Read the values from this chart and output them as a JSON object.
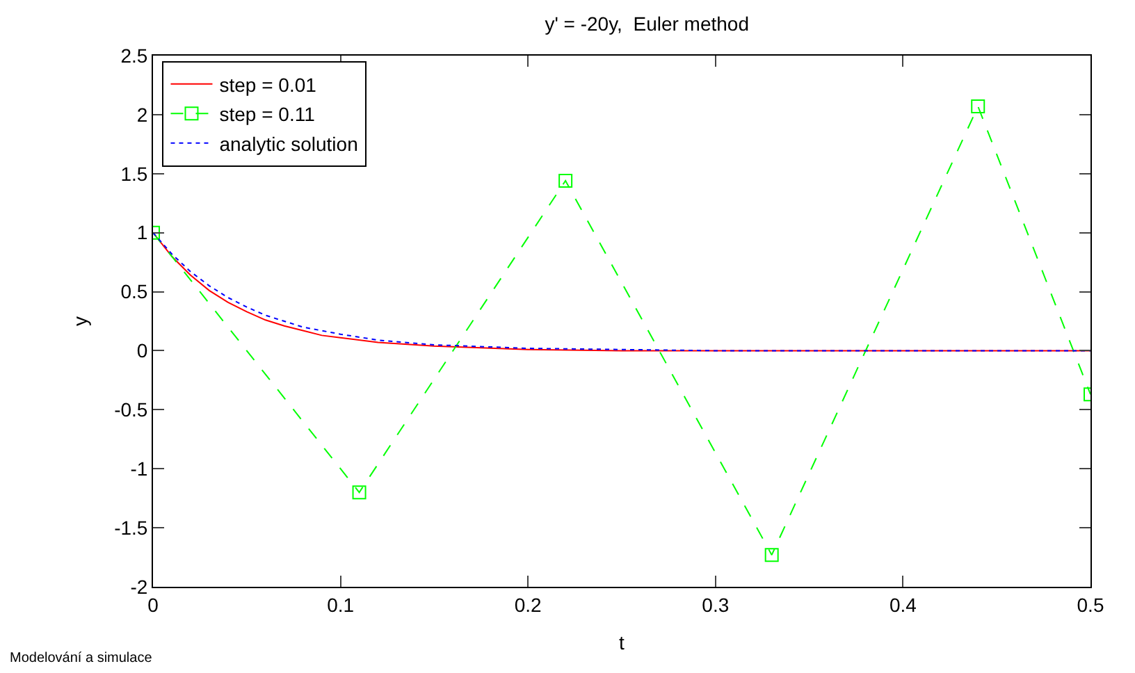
{
  "chart_data": {
    "type": "line",
    "title": "y' = -20y,  Euler method",
    "xlabel": "t",
    "ylabel": "y",
    "xlim": [
      0,
      0.5
    ],
    "xticks": [
      0,
      0.1,
      0.2,
      0.3,
      0.4,
      0.5
    ],
    "ylim": [
      -2,
      2.5
    ],
    "yticks": [
      -2,
      -1.5,
      -1,
      -0.5,
      0,
      0.5,
      1,
      1.5,
      2,
      2.5
    ],
    "legend": "top left",
    "series": [
      {
        "name": "step = 0.01",
        "color": "#ff0000",
        "line_style": "solid",
        "marker": "none",
        "x": [
          0,
          0.01,
          0.02,
          0.03,
          0.04,
          0.05,
          0.06,
          0.07,
          0.08,
          0.09,
          0.1,
          0.12,
          0.15,
          0.2,
          0.25,
          0.3,
          0.4,
          0.5
        ],
        "values": [
          1,
          0.8,
          0.64,
          0.51,
          0.41,
          0.33,
          0.26,
          0.21,
          0.17,
          0.13,
          0.11,
          0.07,
          0.04,
          0.01,
          0,
          0,
          0,
          0
        ]
      },
      {
        "name": "step = 0.11",
        "color": "#00ff00",
        "line_style": "dashed",
        "marker": "square",
        "x": [
          0,
          0.11,
          0.22,
          0.33,
          0.44,
          0.5
        ],
        "values": [
          1,
          -1.2,
          1.44,
          -1.73,
          2.07,
          -0.37
        ]
      },
      {
        "name": "analytic solution",
        "color": "#0000ff",
        "line_style": "dotted",
        "marker": "none",
        "x": [
          0,
          0.01,
          0.02,
          0.03,
          0.04,
          0.05,
          0.06,
          0.07,
          0.08,
          0.09,
          0.1,
          0.12,
          0.15,
          0.2,
          0.25,
          0.3,
          0.4,
          0.5
        ],
        "values": [
          1,
          0.82,
          0.67,
          0.55,
          0.45,
          0.37,
          0.3,
          0.25,
          0.2,
          0.17,
          0.14,
          0.09,
          0.05,
          0.02,
          0.01,
          0,
          0,
          0
        ]
      }
    ],
    "annotations": [
      "Modelování a simulace"
    ]
  }
}
